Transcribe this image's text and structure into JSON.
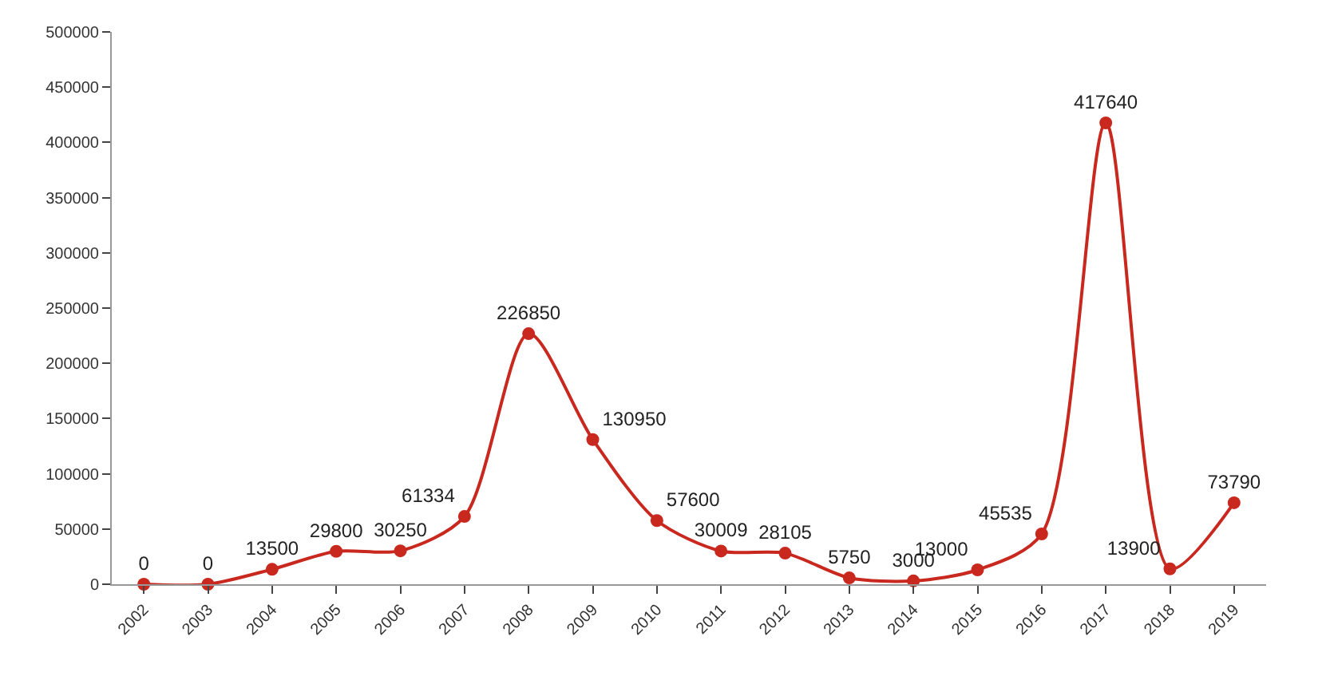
{
  "chart_data": {
    "type": "line",
    "categories": [
      "2002",
      "2003",
      "2004",
      "2005",
      "2006",
      "2007",
      "2008",
      "2009",
      "2010",
      "2011",
      "2012",
      "2013",
      "2014",
      "2015",
      "2016",
      "2017",
      "2018",
      "2019"
    ],
    "series": [
      {
        "color": "#c8281e",
        "values": [
          0,
          0,
          13500,
          29800,
          30250,
          61334,
          226850,
          130950,
          57600,
          30009,
          28105,
          5750,
          3000,
          13000,
          45535,
          417640,
          13900,
          73790
        ]
      }
    ],
    "ylim": [
      0,
      500000
    ],
    "yticks": [
      0,
      50000,
      100000,
      150000,
      200000,
      250000,
      300000,
      350000,
      400000,
      450000,
      500000
    ],
    "data_labels": true,
    "marker": "circle",
    "line_style": "solid"
  }
}
